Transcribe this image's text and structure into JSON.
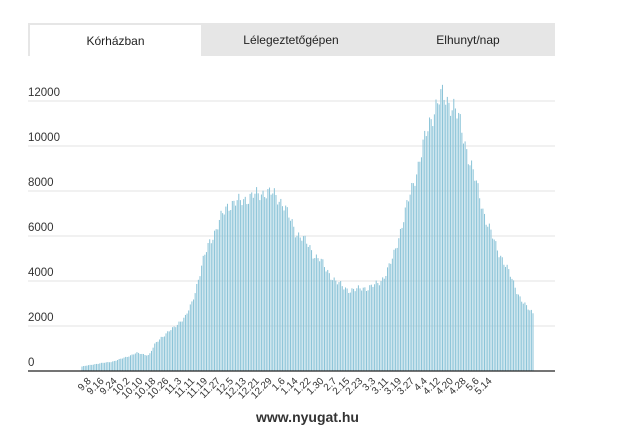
{
  "tabs": [
    {
      "label": "Kórházban",
      "active": true
    },
    {
      "label": "Lélegeztetőgépen",
      "active": false
    },
    {
      "label": "Elhunyt/nap",
      "active": false
    }
  ],
  "footer": {
    "source": "www.nyugat.hu"
  },
  "colors": {
    "bar": "#8cc4d8",
    "grid": "#e3e3e3",
    "axis": "#222222",
    "tab_bg": "#e6e6e6"
  },
  "chart_data": {
    "type": "bar",
    "title": "",
    "xlabel": "",
    "ylabel": "",
    "ylim": [
      0,
      12500
    ],
    "yticks": [
      0,
      2000,
      4000,
      6000,
      8000,
      10000,
      12000
    ],
    "grid": true,
    "xtick_labels": [
      "9.8",
      "9.16",
      "9.24",
      "10.2",
      "10.10",
      "10.18",
      "10.26",
      "11.3",
      "11.11",
      "11.19",
      "11.27",
      "12.5",
      "12.13",
      "12.21",
      "12.29",
      "1.6",
      "1.14",
      "1.22",
      "1.30",
      "2.7",
      "2.15",
      "2.23",
      "3.3",
      "3.11",
      "3.19",
      "3.27",
      "4.4",
      "4.12",
      "4.20",
      "4.28",
      "5.6",
      "5.14"
    ],
    "tick_every_days": 8,
    "series": [
      {
        "values": [
          200,
          250,
          300,
          340,
          380,
          420,
          500,
          600,
          700,
          800,
          750,
          700,
          1200,
          1500,
          1700,
          1900,
          2200,
          2400,
          3000,
          4000,
          5000,
          5800,
          6300,
          6900,
          7400,
          7500,
          7500,
          7700,
          7800,
          7800,
          8000,
          7900,
          7700,
          7500,
          6800,
          6200,
          6000,
          5600,
          5200,
          5000,
          4500,
          4200,
          3900,
          3700,
          3600,
          3600,
          3700,
          3700,
          3800,
          4000,
          4400,
          5000,
          6000,
          7000,
          8000,
          9000,
          10000,
          11000,
          11800,
          12200,
          12000,
          11800,
          11000,
          10000,
          9000,
          8000,
          7000,
          6200,
          5500,
          5000,
          4400,
          3800,
          3200,
          2800,
          2600
        ]
      }
    ]
  }
}
